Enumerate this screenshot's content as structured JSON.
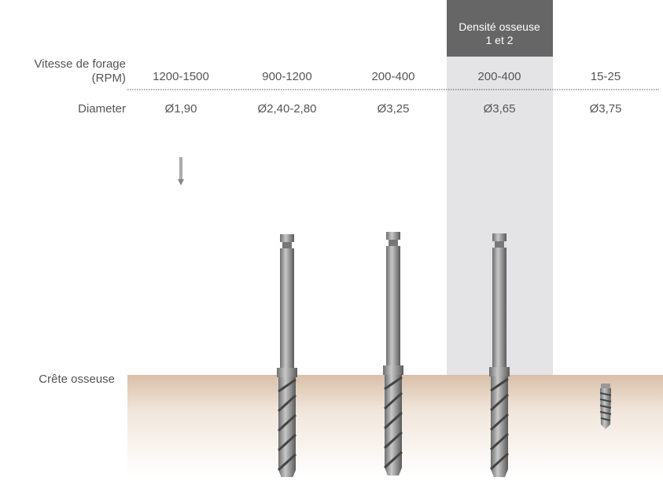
{
  "header_note": {
    "line1": "Densité osseuse",
    "line2": "1 et 2"
  },
  "row_labels": {
    "speed_line1": "Vitesse de forage",
    "speed_line2": "(RPM)",
    "diameter": "Diameter",
    "ridge": "Crête osseuse"
  },
  "columns": [
    {
      "speed": "1200-1500",
      "diameter": "Ø1,90"
    },
    {
      "speed": "900-1200",
      "diameter": "Ø2,40-2,80"
    },
    {
      "speed": "200-400",
      "diameter": "Ø3,25"
    },
    {
      "speed": "200-400",
      "diameter": "Ø3,65"
    },
    {
      "speed": "15-25",
      "diameter": "Ø3,75"
    }
  ]
}
